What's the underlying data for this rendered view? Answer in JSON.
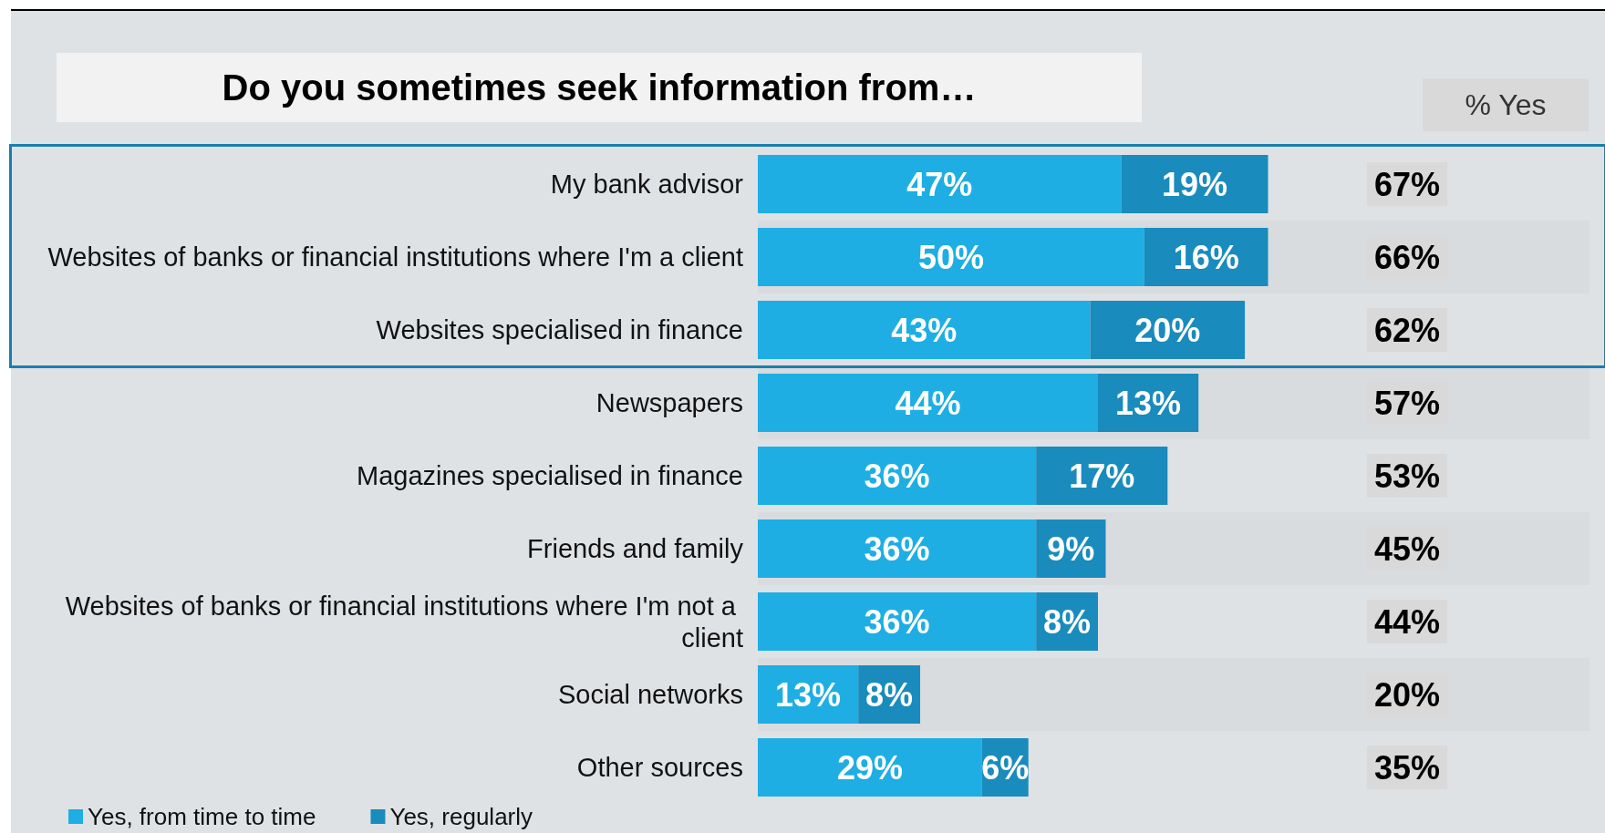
{
  "chart_data": {
    "type": "bar",
    "orientation": "horizontal",
    "stacked": true,
    "legend": "bottom left",
    "title": "Do you sometimes seek information from…",
    "categories": [
      "My bank advisor",
      "Websites of banks or financial institutions where I'm a client",
      "Websites specialised in finance",
      "Newspapers",
      "Magazines specialised in finance",
      "Friends and family",
      "Websites of banks or financial institutions where I'm not a client",
      "Social networks",
      "Other sources"
    ],
    "series": [
      {
        "name": "Yes, from time to time",
        "color": "#1eaee4",
        "values": [
          47,
          50,
          43,
          44,
          36,
          36,
          36,
          13,
          29
        ],
        "value_labels": [
          "47%",
          "50%",
          "43%",
          "44%",
          "36%",
          "36%",
          "36%",
          "13%",
          "29%"
        ]
      },
      {
        "name": "Yes, regularly",
        "color": "#1a8bbd",
        "values": [
          19,
          16,
          20,
          13,
          17,
          9,
          8,
          8,
          6
        ],
        "value_labels": [
          "19%",
          "16%",
          "20%",
          "13%",
          "17%",
          "9%",
          "8%",
          "8%",
          "6%"
        ]
      }
    ],
    "annotations": [
      "% Yes",
      "67%",
      "66%",
      "62%",
      "57%",
      "53%",
      "45%",
      "44%",
      "20%",
      "35%"
    ]
  }
}
